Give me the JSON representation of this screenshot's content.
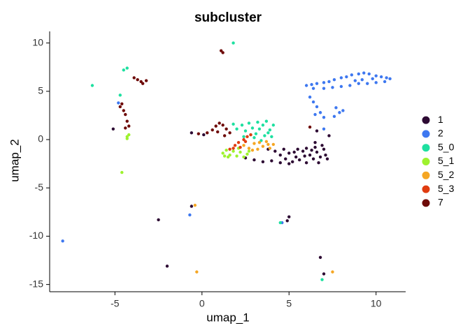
{
  "chart_data": {
    "type": "scatter",
    "title": "subcluster",
    "x_label": "umap_1",
    "y_label": "umap_2",
    "xlim": [
      -8.75,
      11.7
    ],
    "ylim": [
      -15.75,
      11.2
    ],
    "xticks": [
      -5,
      0,
      5,
      10
    ],
    "yticks": [
      -15,
      -10,
      -5,
      0,
      5,
      10
    ],
    "grid": false,
    "legend_position": "right",
    "series": [
      {
        "name": "1",
        "color": "#2d0a33",
        "x": [
          4.2,
          4.5,
          4.8,
          5.0,
          5.2,
          5.4,
          5.6,
          5.8,
          6.0,
          6.2,
          6.4,
          6.6,
          6.8,
          7.0,
          7.1,
          6.9,
          6.5,
          6.0,
          5.5,
          5.0,
          4.5,
          4.0,
          3.5,
          3.0,
          2.5,
          3.8,
          6.7,
          7.2,
          5.3,
          6.3,
          4.7,
          5.9,
          -2.5,
          -2.0,
          4.9,
          5.0,
          6.8,
          7.0,
          -0.6,
          -5.1,
          7.3,
          6.6,
          0.1,
          -0.6,
          6.5
        ],
        "y": [
          -1.2,
          -1.6,
          -2.0,
          -1.4,
          -2.3,
          -1.8,
          -2.1,
          -1.2,
          -2.4,
          -1.6,
          -2.0,
          -1.3,
          -1.8,
          -1.0,
          -1.6,
          -0.6,
          -0.8,
          -0.9,
          -1.0,
          -2.5,
          -2.4,
          -2.2,
          -2.3,
          -2.1,
          -1.9,
          -1.0,
          -2.4,
          -2.0,
          -1.3,
          -1.1,
          -1.0,
          -1.7,
          -8.3,
          -13.1,
          -8.4,
          -8.0,
          -12.2,
          -13.9,
          -6.9,
          1.1,
          0.4,
          0.9,
          0.5,
          0.7,
          -0.3
        ]
      },
      {
        "name": "2",
        "color": "#3e78f0",
        "x": [
          6.0,
          6.3,
          6.6,
          7.0,
          7.3,
          7.6,
          8.0,
          8.3,
          8.6,
          9.0,
          9.3,
          9.6,
          10.0,
          10.3,
          10.6,
          10.8,
          10.5,
          10.0,
          9.5,
          9.0,
          8.5,
          8.0,
          7.5,
          7.0,
          9.2,
          8.8,
          9.8,
          6.4,
          6.2,
          6.4,
          6.6,
          6.8,
          7.0,
          6.5,
          7.7,
          7.9,
          7.6,
          8.1,
          7.0,
          -8.0,
          -0.7,
          -4.8,
          4.6
        ],
        "y": [
          5.6,
          5.7,
          5.8,
          5.9,
          6.0,
          6.2,
          6.4,
          6.5,
          6.7,
          6.8,
          6.9,
          6.8,
          6.6,
          6.5,
          6.4,
          6.3,
          6.0,
          5.9,
          5.8,
          5.8,
          5.6,
          5.5,
          5.4,
          5.3,
          6.2,
          6.1,
          6.3,
          5.3,
          4.4,
          3.9,
          3.4,
          2.8,
          2.3,
          2.6,
          3.3,
          2.8,
          2.4,
          3.0,
          1.1,
          -10.5,
          -7.8,
          3.8,
          -8.6
        ]
      },
      {
        "name": "5_0",
        "color": "#1ee0a0",
        "x": [
          2.0,
          2.3,
          2.5,
          2.7,
          2.9,
          3.1,
          3.2,
          3.3,
          3.5,
          3.6,
          3.7,
          3.9,
          4.0,
          3.4,
          3.0,
          2.8,
          2.4,
          4.1,
          3.8,
          1.8,
          1.8,
          -4.3,
          -4.5,
          -6.3,
          -4.7,
          4.5,
          6.9
        ],
        "y": [
          1.1,
          1.5,
          0.9,
          1.7,
          1.2,
          0.6,
          1.8,
          1.1,
          1.5,
          0.4,
          1.9,
          1.0,
          0.3,
          -0.1,
          0.2,
          0.5,
          0.3,
          1.5,
          0.7,
          1.6,
          10.0,
          7.4,
          7.2,
          5.6,
          4.6,
          -8.6,
          -14.5
        ]
      },
      {
        "name": "5_1",
        "color": "#9ef22e",
        "x": [
          1.2,
          1.4,
          1.6,
          1.8,
          2.0,
          2.2,
          2.4,
          2.6,
          1.5,
          2.1,
          1.3,
          2.7,
          -4.3,
          -4.2,
          -4.3,
          -4.6
        ],
        "y": [
          -1.4,
          -1.1,
          -1.6,
          -1.2,
          -1.7,
          -1.3,
          -1.8,
          -1.5,
          -1.8,
          -0.9,
          -1.7,
          -1.2,
          0.3,
          0.5,
          0.1,
          -3.4
        ]
      },
      {
        "name": "5_2",
        "color": "#f5a623",
        "x": [
          2.4,
          2.7,
          3.0,
          3.2,
          3.5,
          3.7,
          3.9,
          4.1,
          3.3,
          2.9,
          -0.4,
          -0.3,
          7.5,
          3.8
        ],
        "y": [
          -0.6,
          -0.9,
          -0.4,
          -1.0,
          -0.7,
          -0.2,
          -0.9,
          -0.5,
          -0.3,
          -1.1,
          -6.8,
          -13.7,
          -13.7,
          -0.5
        ]
      },
      {
        "name": "5_3",
        "color": "#e03c10",
        "x": [
          1.6,
          1.9,
          2.1,
          2.4,
          2.6,
          2.8,
          2.2,
          1.8,
          2.5
        ],
        "y": [
          -1.0,
          -0.6,
          -0.3,
          0.0,
          0.3,
          0.5,
          -0.8,
          -0.9,
          -0.2
        ]
      },
      {
        "name": "7",
        "color": "#6e0a08",
        "x": [
          -3.5,
          -3.7,
          -3.9,
          -3.4,
          -3.2,
          -4.7,
          -4.5,
          -4.4,
          -4.3,
          -4.6,
          -4.2,
          -4.4,
          1.1,
          1.2,
          0.3,
          0.6,
          0.8,
          1.0,
          1.2,
          1.4,
          1.6,
          1.3,
          0.9,
          6.2,
          -0.2
        ],
        "y": [
          6.0,
          6.2,
          6.4,
          5.8,
          6.1,
          3.4,
          3.0,
          2.6,
          1.9,
          3.7,
          1.4,
          1.2,
          9.2,
          9.0,
          0.7,
          1.0,
          1.4,
          1.7,
          1.5,
          1.1,
          0.7,
          0.4,
          0.8,
          1.3,
          0.6
        ]
      }
    ]
  }
}
